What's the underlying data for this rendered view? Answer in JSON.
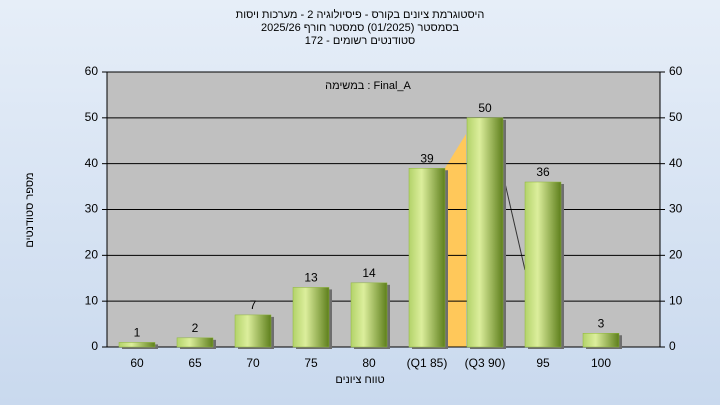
{
  "chart_data": {
    "type": "bar",
    "title": "היסטוגרמת ציונים בקורס - פיסיולוגיה 2 - מערכות ויסות",
    "subtitle": [
      "בסמסטר  (01/2025)  סמסטר חורף 2025/26",
      "סטודנטים רשומים - 172"
    ],
    "annotation": "במשימה : Final_A",
    "x_label": "טווח ציונים",
    "y_label": "מספר סטודנטים",
    "categories": [
      "60",
      "65",
      "70",
      "75",
      "80",
      "(Q1 85)",
      "(Q3 90)",
      "95",
      "100"
    ],
    "values": [
      1,
      2,
      7,
      13,
      14,
      39,
      50,
      36,
      3
    ],
    "color": "#8db53a",
    "ylim": [
      0,
      60
    ],
    "yticks": [
      0,
      10,
      20,
      30,
      40,
      50,
      60
    ],
    "grid": true
  }
}
